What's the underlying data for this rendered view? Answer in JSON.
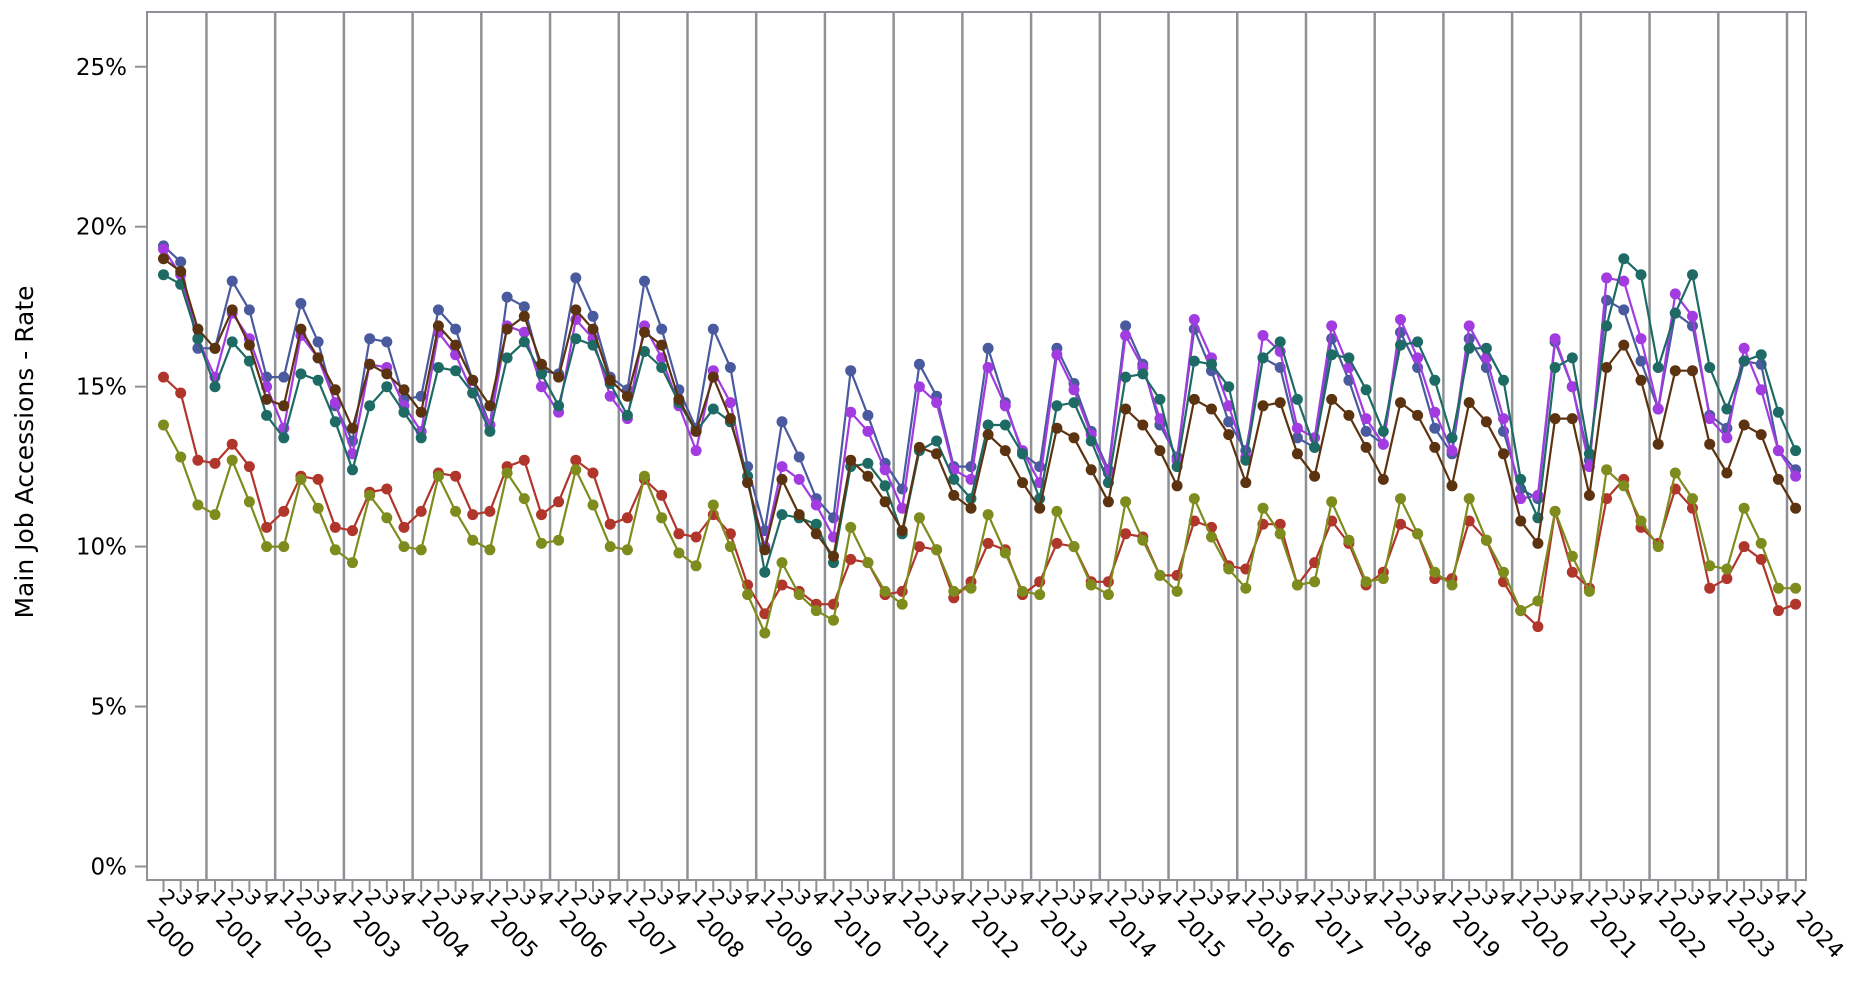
{
  "chart_data": {
    "type": "line",
    "ylabel": "Main Job Accessions - Rate",
    "ylim": [
      0,
      25
    ],
    "y_ticks": [
      "0%",
      "5%",
      "10%",
      "15%",
      "20%",
      "25%"
    ],
    "quarter_labels": [
      "1",
      "2",
      "3",
      "4"
    ],
    "years": [
      "2000",
      "2001",
      "2002",
      "2003",
      "2004",
      "2005",
      "2006",
      "2007",
      "2008",
      "2009",
      "2010",
      "2011",
      "2012",
      "2013",
      "2014",
      "2015",
      "2016",
      "2017",
      "2018",
      "2019",
      "2020",
      "2021",
      "2022",
      "2023",
      "2024"
    ],
    "x_start": {
      "year": "2000",
      "quarter": 2
    },
    "gridlines": "year boundaries (vertical)",
    "series": [
      {
        "color": "#4A5A9E",
        "values": [
          19.4,
          18.9,
          16.2,
          16.2,
          18.3,
          17.4,
          15.3,
          15.3,
          17.6,
          16.4,
          14.4,
          13.3,
          16.5,
          16.4,
          14.6,
          14.7,
          17.4,
          16.8,
          15.2,
          13.8,
          17.8,
          17.5,
          15.5,
          15.4,
          18.4,
          17.2,
          15.3,
          14.9,
          18.3,
          16.8,
          14.9,
          13.7,
          16.8,
          15.6,
          12.5,
          10.5,
          13.9,
          12.8,
          11.5,
          10.9,
          15.5,
          14.1,
          12.6,
          11.8,
          15.7,
          14.7,
          12.5,
          12.5,
          16.2,
          14.5,
          12.9,
          12.5,
          16.2,
          15.1,
          13.6,
          12.4,
          16.9,
          15.7,
          13.8,
          12.8,
          16.8,
          15.5,
          13.9,
          13.0,
          15.9,
          15.6,
          13.4,
          13.1,
          16.5,
          15.2,
          13.6,
          13.2,
          16.7,
          15.6,
          13.7,
          12.9,
          16.5,
          15.6,
          13.6,
          11.8,
          11.5,
          16.4,
          15.0,
          12.7,
          17.7,
          17.4,
          15.8,
          14.3,
          17.3,
          16.9,
          14.1,
          13.7,
          15.8,
          15.7,
          13.0,
          12.4
        ]
      },
      {
        "color": "#A23CE0",
        "values": [
          19.3,
          18.5,
          16.5,
          15.3,
          17.3,
          16.5,
          15.0,
          13.7,
          16.6,
          15.9,
          14.5,
          12.9,
          15.7,
          15.6,
          14.4,
          13.6,
          16.7,
          16.0,
          14.8,
          13.8,
          16.9,
          16.7,
          15.0,
          14.2,
          17.1,
          16.5,
          14.7,
          14.0,
          16.9,
          15.9,
          14.4,
          13.0,
          15.5,
          14.5,
          12.0,
          10.0,
          12.5,
          12.1,
          11.3,
          10.3,
          14.2,
          13.6,
          12.4,
          11.2,
          15.0,
          14.5,
          12.4,
          12.1,
          15.6,
          14.4,
          13.0,
          12.0,
          16.0,
          14.9,
          13.5,
          12.3,
          16.6,
          15.6,
          14.0,
          12.7,
          17.1,
          15.9,
          14.4,
          12.8,
          16.6,
          16.1,
          13.7,
          13.4,
          16.9,
          15.6,
          14.0,
          13.2,
          17.1,
          15.9,
          14.2,
          13.0,
          16.9,
          15.9,
          14.0,
          11.5,
          11.6,
          16.5,
          15.0,
          12.5,
          18.4,
          18.3,
          16.5,
          14.3,
          17.9,
          17.2,
          14.0,
          13.4,
          16.2,
          14.9,
          13.0,
          12.2
        ]
      },
      {
        "color": "#1D6B64",
        "values": [
          18.5,
          18.2,
          16.5,
          15.0,
          16.4,
          15.8,
          14.1,
          13.4,
          15.4,
          15.2,
          13.9,
          12.4,
          14.4,
          15.0,
          14.2,
          13.4,
          15.6,
          15.5,
          14.8,
          13.6,
          15.9,
          16.4,
          15.4,
          14.4,
          16.5,
          16.3,
          15.1,
          14.1,
          16.1,
          15.6,
          14.5,
          13.6,
          14.3,
          13.9,
          12.2,
          9.2,
          11.0,
          10.9,
          10.7,
          9.5,
          12.5,
          12.6,
          11.9,
          10.4,
          13.0,
          13.3,
          12.1,
          11.5,
          13.8,
          13.8,
          12.9,
          11.5,
          14.4,
          14.5,
          13.3,
          12.0,
          15.3,
          15.4,
          14.6,
          12.5,
          15.8,
          15.7,
          15.0,
          12.7,
          15.9,
          16.4,
          14.6,
          13.1,
          16.0,
          15.9,
          14.9,
          13.6,
          16.3,
          16.4,
          15.2,
          13.4,
          16.2,
          16.2,
          15.2,
          12.1,
          10.9,
          15.6,
          15.9,
          12.9,
          16.9,
          19.0,
          18.5,
          15.6,
          17.3,
          18.5,
          15.6,
          14.3,
          15.8,
          16.0,
          14.2,
          13.0
        ]
      },
      {
        "color": "#5C3310",
        "values": [
          19.0,
          18.6,
          16.8,
          16.2,
          17.4,
          16.3,
          14.6,
          14.4,
          16.8,
          15.9,
          14.9,
          13.7,
          15.7,
          15.4,
          14.9,
          14.2,
          16.9,
          16.3,
          15.2,
          14.4,
          16.8,
          17.2,
          15.7,
          15.3,
          17.4,
          16.8,
          15.2,
          14.7,
          16.7,
          16.3,
          14.6,
          13.6,
          15.3,
          14.0,
          12.0,
          9.9,
          12.1,
          11.0,
          10.4,
          9.7,
          12.7,
          12.2,
          11.4,
          10.5,
          13.1,
          12.9,
          11.6,
          11.2,
          13.5,
          13.0,
          12.0,
          11.2,
          13.7,
          13.4,
          12.4,
          11.4,
          14.3,
          13.8,
          13.0,
          11.9,
          14.6,
          14.3,
          13.5,
          12.0,
          14.4,
          14.5,
          12.9,
          12.2,
          14.6,
          14.1,
          13.1,
          12.1,
          14.5,
          14.1,
          13.1,
          11.9,
          14.5,
          13.9,
          12.9,
          10.8,
          10.1,
          14.0,
          14.0,
          11.6,
          15.6,
          16.3,
          15.2,
          13.2,
          15.5,
          15.5,
          13.2,
          12.3,
          13.8,
          13.5,
          12.1,
          11.2
        ]
      },
      {
        "color": "#B0362C",
        "values": [
          15.3,
          14.8,
          12.7,
          12.6,
          13.2,
          12.5,
          10.6,
          11.1,
          12.2,
          12.1,
          10.6,
          10.5,
          11.7,
          11.8,
          10.6,
          11.1,
          12.3,
          12.2,
          11.0,
          11.1,
          12.5,
          12.7,
          11.0,
          11.4,
          12.7,
          12.3,
          10.7,
          10.9,
          12.1,
          11.6,
          10.4,
          10.3,
          11.0,
          10.4,
          8.8,
          7.9,
          8.8,
          8.6,
          8.2,
          8.2,
          9.6,
          9.5,
          8.5,
          8.6,
          10.0,
          9.9,
          8.4,
          8.9,
          10.1,
          9.9,
          8.5,
          8.9,
          10.1,
          10.0,
          8.9,
          8.9,
          10.4,
          10.3,
          9.1,
          9.1,
          10.8,
          10.6,
          9.4,
          9.3,
          10.7,
          10.7,
          8.8,
          9.5,
          10.8,
          10.1,
          8.8,
          9.2,
          10.7,
          10.4,
          9.0,
          9.0,
          10.8,
          10.2,
          8.9,
          8.0,
          7.5,
          11.1,
          9.2,
          8.7,
          11.5,
          12.1,
          10.6,
          10.1,
          11.8,
          11.2,
          8.7,
          9.0,
          10.0,
          9.6,
          8.0,
          8.2
        ]
      },
      {
        "color": "#7E8C1E",
        "values": [
          13.8,
          12.8,
          11.3,
          11.0,
          12.7,
          11.4,
          10.0,
          10.0,
          12.1,
          11.2,
          9.9,
          9.5,
          11.6,
          10.9,
          10.0,
          9.9,
          12.2,
          11.1,
          10.2,
          9.9,
          12.3,
          11.5,
          10.1,
          10.2,
          12.4,
          11.3,
          10.0,
          9.9,
          12.2,
          10.9,
          9.8,
          9.4,
          11.3,
          10.0,
          8.5,
          7.3,
          9.5,
          8.5,
          8.0,
          7.7,
          10.6,
          9.5,
          8.6,
          8.2,
          10.9,
          9.9,
          8.6,
          8.7,
          11.0,
          9.8,
          8.6,
          8.5,
          11.1,
          10.0,
          8.8,
          8.5,
          11.4,
          10.2,
          9.1,
          8.6,
          11.5,
          10.3,
          9.3,
          8.7,
          11.2,
          10.4,
          8.8,
          8.9,
          11.4,
          10.2,
          8.9,
          9.0,
          11.5,
          10.4,
          9.2,
          8.8,
          11.5,
          10.2,
          9.2,
          8.0,
          8.3,
          11.1,
          9.7,
          8.6,
          12.4,
          11.9,
          10.8,
          10.0,
          12.3,
          11.5,
          9.4,
          9.3,
          11.2,
          10.1,
          8.7,
          8.7
        ]
      }
    ]
  }
}
